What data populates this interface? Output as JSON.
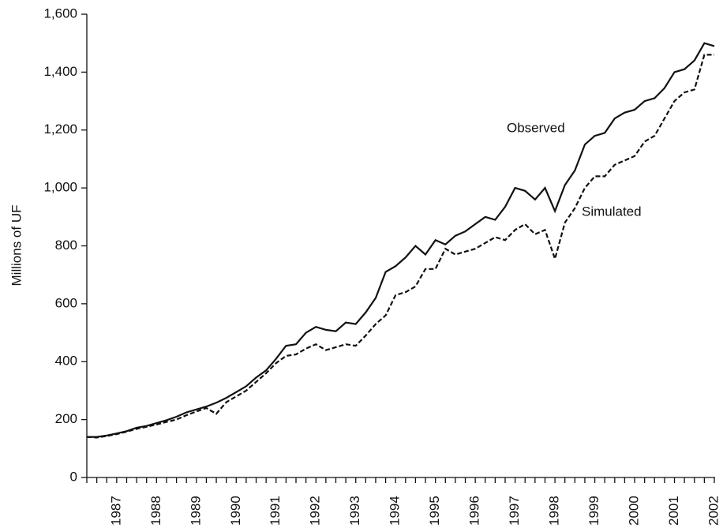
{
  "chart_data": {
    "type": "line",
    "ylabel": "Millions of UF",
    "categories": [
      null,
      null,
      null,
      "1987",
      null,
      null,
      null,
      "1988",
      null,
      null,
      null,
      "1989",
      null,
      null,
      null,
      "1990",
      null,
      null,
      null,
      "1991",
      null,
      null,
      null,
      "1992",
      null,
      null,
      null,
      "1993",
      null,
      null,
      null,
      "1994",
      null,
      null,
      null,
      "1995",
      null,
      null,
      null,
      "1996",
      null,
      null,
      null,
      "1997",
      null,
      null,
      null,
      "1998",
      null,
      null,
      null,
      "1999",
      null,
      null,
      null,
      "2000",
      null,
      null,
      null,
      "2001",
      null,
      null,
      null,
      "2002"
    ],
    "series": [
      {
        "name": "Observed",
        "color": "#111111",
        "dashed": false,
        "values": [
          140,
          140,
          145,
          152,
          160,
          172,
          178,
          188,
          198,
          210,
          225,
          235,
          245,
          258,
          275,
          295,
          315,
          345,
          370,
          410,
          455,
          460,
          500,
          520,
          510,
          505,
          535,
          530,
          570,
          620,
          710,
          730,
          760,
          800,
          770,
          820,
          805,
          835,
          850,
          875,
          900,
          890,
          935,
          1000,
          990,
          960,
          1000,
          920,
          1010,
          1060,
          1150,
          1180,
          1190,
          1240,
          1260,
          1270,
          1300,
          1310,
          1345,
          1400,
          1410,
          1440,
          1500,
          1490
        ]
      },
      {
        "name": "Simulated",
        "color": "#111111",
        "dashed": true,
        "values": [
          140,
          138,
          143,
          150,
          158,
          168,
          175,
          183,
          192,
          200,
          215,
          228,
          240,
          220,
          260,
          280,
          300,
          330,
          360,
          395,
          420,
          425,
          445,
          460,
          440,
          450,
          460,
          455,
          490,
          530,
          560,
          630,
          640,
          660,
          720,
          720,
          790,
          770,
          780,
          790,
          810,
          830,
          820,
          855,
          875,
          840,
          855,
          755,
          880,
          930,
          1000,
          1040,
          1040,
          1080,
          1095,
          1110,
          1160,
          1180,
          1240,
          1300,
          1330,
          1340,
          1460,
          1460
        ]
      }
    ],
    "ylim": [
      0,
      1600
    ],
    "yticks": [
      0,
      200,
      400,
      600,
      800,
      {
        "value": 1000,
        "label": "1,000"
      },
      {
        "value": 1200,
        "label": "1,200"
      },
      {
        "value": 1400,
        "label": "1,400"
      },
      {
        "value": 1600,
        "label": "1,600"
      }
    ],
    "grid": false
  }
}
